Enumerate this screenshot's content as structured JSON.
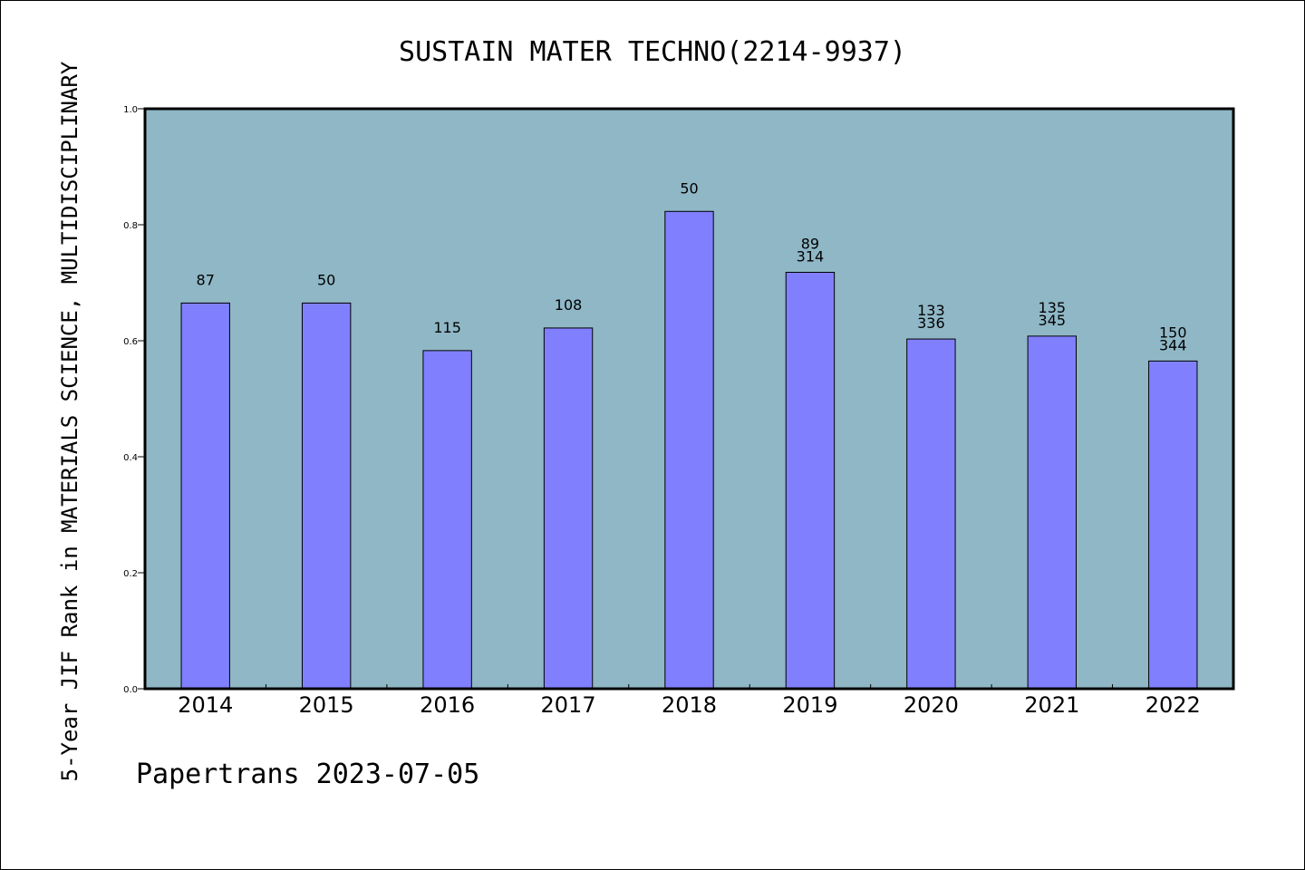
{
  "chart_data": {
    "type": "bar",
    "title": "SUSTAIN MATER TECHNO(2214-9937)",
    "xlabel": "",
    "ylabel": "5-Year JIF Rank in MATERIALS SCIENCE, MULTIDISCIPLINARY",
    "ylim": [
      0.0,
      1.0
    ],
    "yticks": [
      "0.0",
      "0.2",
      "0.4",
      "0.6",
      "0.8",
      "1.0"
    ],
    "categories": [
      "2014",
      "2015",
      "2016",
      "2017",
      "2018",
      "2019",
      "2020",
      "2021",
      "2022"
    ],
    "values": [
      0.665,
      0.665,
      0.583,
      0.622,
      0.823,
      0.718,
      0.603,
      0.608,
      0.565
    ],
    "labels": [
      [
        "87"
      ],
      [
        "50"
      ],
      [
        "115"
      ],
      [
        "108"
      ],
      [
        "50"
      ],
      [
        "89",
        "314"
      ],
      [
        "133",
        "336"
      ],
      [
        "135",
        "345"
      ],
      [
        "150",
        "344"
      ]
    ],
    "grid": false,
    "colors": {
      "plot_background": "#8fb7c6",
      "bar_fill": "#8080ff",
      "bar_stroke": "#000000"
    }
  },
  "footer": "Papertrans 2023-07-05"
}
